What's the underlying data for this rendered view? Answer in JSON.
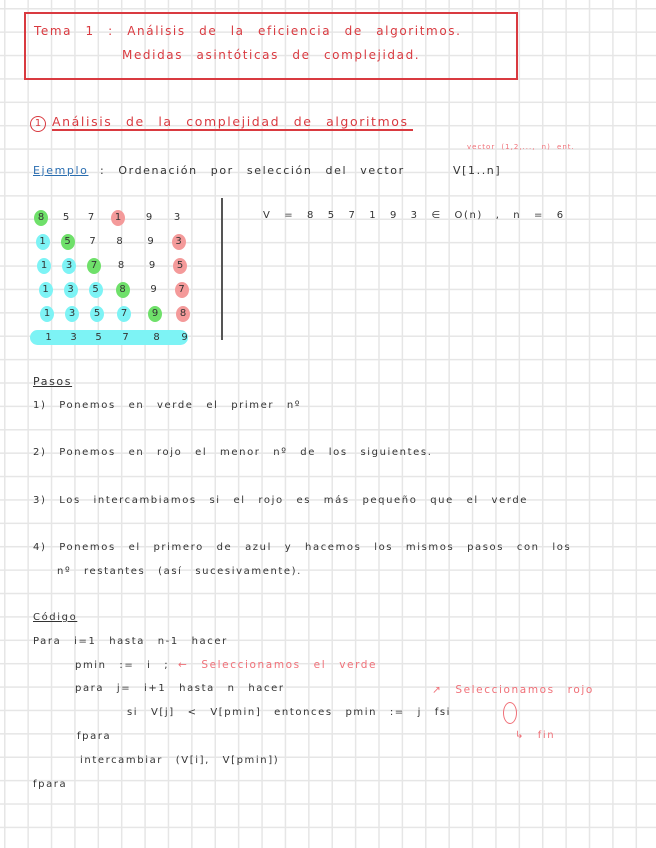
{
  "title": {
    "line1": "Tema 1 : Análisis de la eficiencia de algoritmos.",
    "line2": "Medidas asintóticas de complejidad."
  },
  "section1": {
    "number": "1",
    "heading": "Análisis de la complejidad de algoritmos"
  },
  "example": {
    "label": "Ejemplo",
    "text": ": Ordenación por selección del vector",
    "vector": "V[1..n]",
    "annotation": "vector (1,2,..., n) ent."
  },
  "trace": {
    "rows": [
      [
        {
          "v": "8",
          "c": "g"
        },
        {
          "v": "5"
        },
        {
          "v": "7"
        },
        {
          "v": "1",
          "c": "r"
        },
        {
          "v": "9"
        },
        {
          "v": "3"
        }
      ],
      [
        {
          "v": "1",
          "c": "c"
        },
        {
          "v": "5",
          "c": "g"
        },
        {
          "v": "7"
        },
        {
          "v": "8"
        },
        {
          "v": "9"
        },
        {
          "v": "3",
          "c": "r"
        }
      ],
      [
        {
          "v": "1",
          "c": "c"
        },
        {
          "v": "3",
          "c": "c"
        },
        {
          "v": "7",
          "c": "g"
        },
        {
          "v": "8"
        },
        {
          "v": "9"
        },
        {
          "v": "5",
          "c": "r"
        }
      ],
      [
        {
          "v": "1",
          "c": "c"
        },
        {
          "v": "3",
          "c": "c"
        },
        {
          "v": "5",
          "c": "c"
        },
        {
          "v": "8",
          "c": "g"
        },
        {
          "v": "9"
        },
        {
          "v": "7",
          "c": "r"
        }
      ],
      [
        {
          "v": "1",
          "c": "c"
        },
        {
          "v": "3",
          "c": "c"
        },
        {
          "v": "5",
          "c": "c"
        },
        {
          "v": "7",
          "c": "c"
        },
        {
          "v": "9",
          "c": "g"
        },
        {
          "v": "8",
          "c": "r"
        }
      ],
      [
        {
          "v": "1"
        },
        {
          "v": "3"
        },
        {
          "v": "5"
        },
        {
          "v": "7"
        },
        {
          "v": "8"
        },
        {
          "v": "9"
        }
      ]
    ],
    "formula": "V = 8 5 7 1 9 3 ∈ O(n) , n = 6"
  },
  "colors": {
    "green": "#6fe06a",
    "cyan": "#7df3f5",
    "red": "#f49a9a",
    "heading": "#d93a40",
    "link": "#2a6db0"
  },
  "steps": {
    "heading": "Pasos",
    "items": [
      "1) Ponemos en verde el primer nº",
      "2) Ponemos en rojo el menor nº de los siguientes.",
      "3) Los intercambiamos si el rojo es más pequeño que el verde",
      "4) Ponemos el primero de azul y hacemos los mismos pasos con los"
    ],
    "item4_cont": "nº restantes (así sucesivamente)."
  },
  "code": {
    "heading": "Código",
    "lines": [
      "Para i=1 hasta n-1 hacer",
      "pmin := i ;",
      "para j= i+1 hasta n hacer",
      "si V[j] < V[pmin] entonces pmin := j fsi",
      "fpara",
      "intercambiar (V[i], V[pmin])",
      "fpara"
    ],
    "note_green": "← Seleccionamos el verde",
    "note_red": "↗ Seleccionamos rojo",
    "note_fin": "↳ fin"
  }
}
